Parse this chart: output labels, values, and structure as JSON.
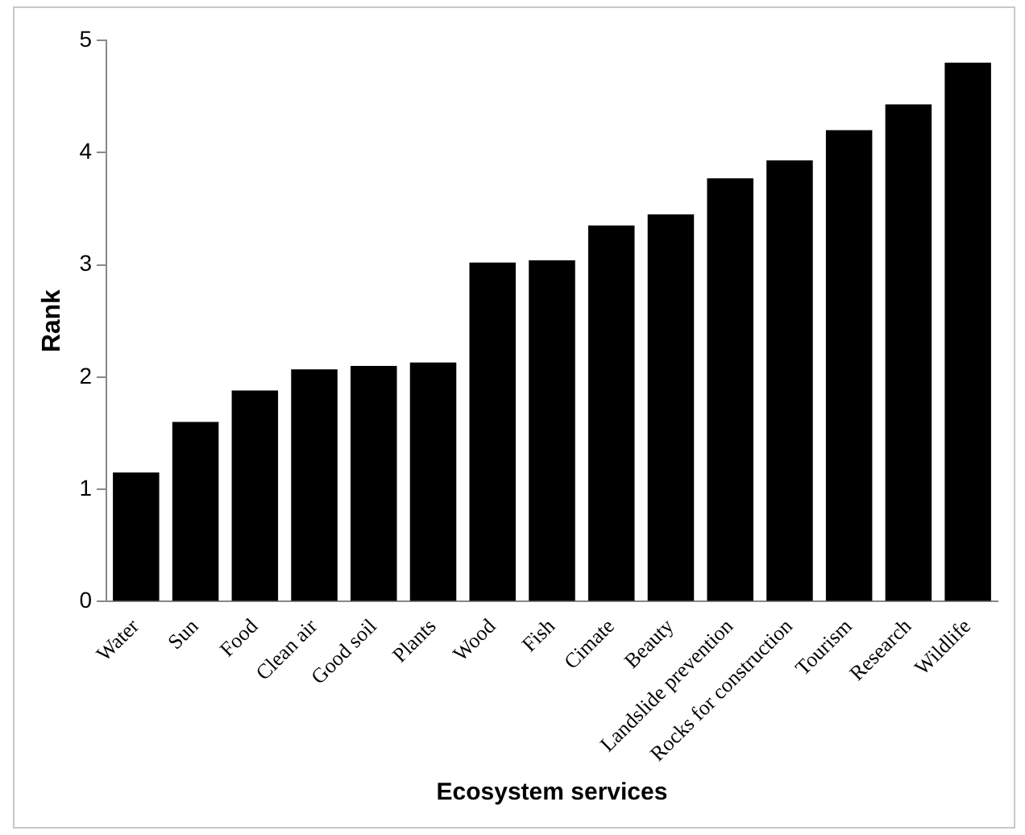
{
  "chart_data": {
    "type": "bar",
    "xlabel": "Ecosystem services",
    "ylabel": "Rank",
    "categories": [
      "Water",
      "Sun",
      "Food",
      "Clean air",
      "Good soil",
      "Plants",
      "Wood",
      "Fish",
      "Cimate",
      "Beauty",
      "Landslide prevention",
      "Rocks for construction",
      "Tourism",
      "Research",
      "Wildlife"
    ],
    "values": [
      1.15,
      1.6,
      1.88,
      2.07,
      2.1,
      2.13,
      3.02,
      3.04,
      3.35,
      3.45,
      3.77,
      3.93,
      4.2,
      4.43,
      4.8
    ],
    "color": "#000000",
    "ylim": [
      0,
      5
    ],
    "yticks": [
      0,
      1,
      2,
      3,
      4,
      5
    ],
    "grid": false,
    "legend": false
  }
}
